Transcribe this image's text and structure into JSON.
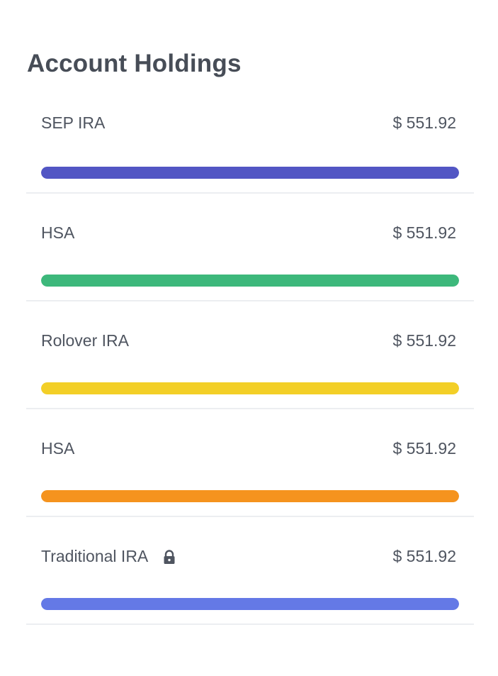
{
  "header": {
    "title": "Account Holdings"
  },
  "accounts": [
    {
      "label": "SEP IRA",
      "value": "$ 551.92",
      "bar_color": "#5256c4",
      "fill_percent": 100,
      "locked": false
    },
    {
      "label": "HSA",
      "value": "$ 551.92",
      "bar_color": "#3db87b",
      "fill_percent": 100,
      "locked": false
    },
    {
      "label": "Rolover IRA",
      "value": "$ 551.92",
      "bar_color": "#f3cf27",
      "fill_percent": 100,
      "locked": false
    },
    {
      "label": "HSA",
      "value": "$ 551.92",
      "bar_color": "#f5931e",
      "fill_percent": 100,
      "locked": false
    },
    {
      "label": "Traditional IRA",
      "value": "$ 551.92",
      "bar_color": "#6479e6",
      "fill_percent": 100,
      "locked": true,
      "lock_icon": "lock-icon"
    }
  ]
}
